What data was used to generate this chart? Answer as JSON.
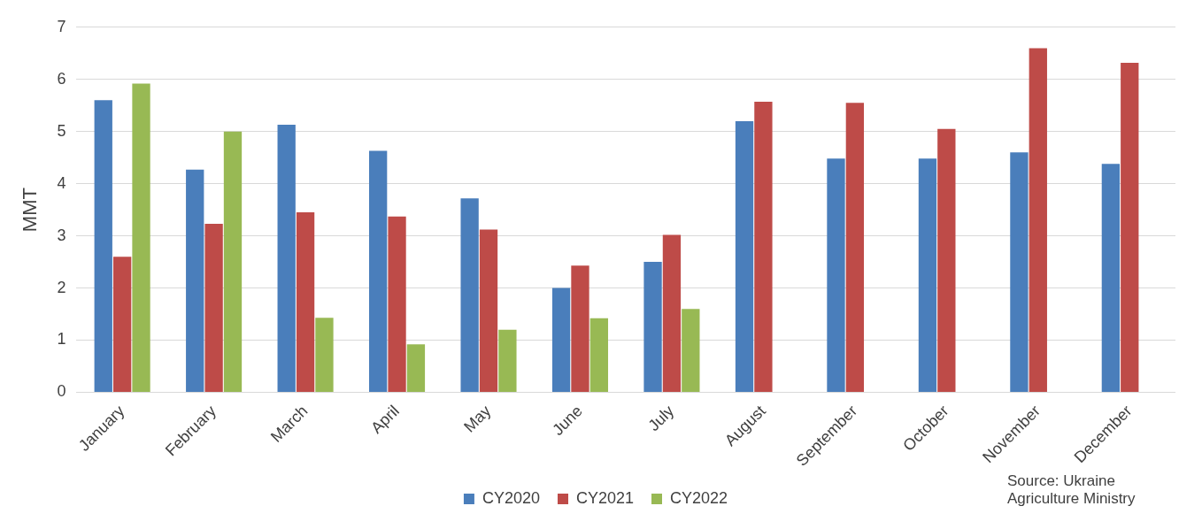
{
  "chart_data": {
    "type": "bar",
    "ylabel": "MMT",
    "categories": [
      "January",
      "February",
      "March",
      "April",
      "May",
      "June",
      "July",
      "August",
      "September",
      "October",
      "November",
      "December"
    ],
    "series": [
      {
        "name": "CY2020",
        "color": "#4a7ebb",
        "values": [
          5.6,
          4.27,
          5.13,
          4.63,
          3.72,
          2.0,
          2.5,
          5.2,
          4.48,
          4.48,
          4.6,
          4.38
        ]
      },
      {
        "name": "CY2021",
        "color": "#be4b48",
        "values": [
          2.6,
          3.23,
          3.45,
          3.37,
          3.12,
          2.43,
          3.02,
          5.57,
          5.55,
          5.05,
          6.6,
          6.32
        ]
      },
      {
        "name": "CY2022",
        "color": "#98b954",
        "values": [
          5.92,
          5.0,
          1.43,
          0.92,
          1.2,
          1.42,
          1.6,
          null,
          null,
          null,
          null,
          null
        ]
      }
    ],
    "ylim": [
      0,
      7
    ],
    "yticks": [
      0,
      1,
      2,
      3,
      4,
      5,
      6,
      7
    ],
    "grid": "y",
    "legend": "bottom",
    "annotations": [
      "Source: Ukraine Agriculture Ministry"
    ]
  }
}
